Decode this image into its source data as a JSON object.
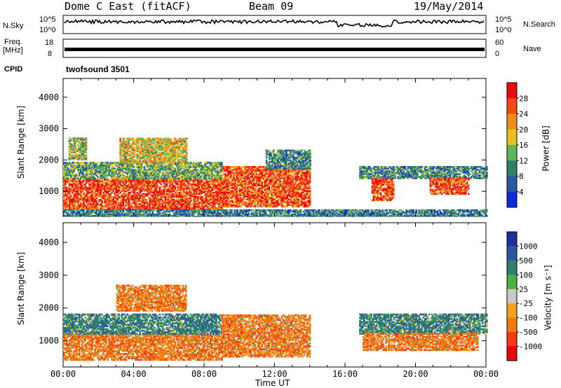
{
  "header": {
    "station": "Dome C East (fitACF)",
    "beam": "Beam 09",
    "date": "19/May/2014"
  },
  "top_panels": {
    "nsky_label": "N.Sky",
    "nsky_ticks": [
      "10^5",
      "10^0"
    ],
    "nsearch_label": "N.Search",
    "nsearch_ticks": [
      "10^5",
      "10^0"
    ],
    "freq_label": "Freq.",
    "freq_unit": "[MHz]",
    "freq_ticks": [
      "18",
      "8"
    ],
    "nave_label": "Nave",
    "nave_ticks": [
      "60",
      "0"
    ],
    "cpid_label": "CPID",
    "cpid_value": "twofsound 3501"
  },
  "chart_data": [
    {
      "type": "heatmap",
      "ylabel": "Slant Range [km]",
      "ylim": [
        200,
        4600
      ],
      "yticks": [
        1000,
        2000,
        3000,
        4000
      ],
      "xlabel": "Time UT",
      "xlim_hours": [
        0,
        24
      ],
      "xtick_labels": [
        "00:00",
        "04:00",
        "08:00",
        "12:00",
        "16:00",
        "20:00",
        "00:00"
      ],
      "colorbar": {
        "label": "Power [dB]",
        "ticks": [
          "4",
          "8",
          "12",
          "16",
          "20",
          "24",
          "28"
        ],
        "levels": [
          {
            "from": 0,
            "to": 4,
            "color": "#0a2bd8"
          },
          {
            "from": 4,
            "to": 8,
            "color": "#2a58a8"
          },
          {
            "from": 8,
            "to": 12,
            "color": "#2f7f6e"
          },
          {
            "from": 12,
            "to": 16,
            "color": "#5db65a"
          },
          {
            "from": 16,
            "to": 20,
            "color": "#e8c01c"
          },
          {
            "from": 20,
            "to": 24,
            "color": "#f08c1c"
          },
          {
            "from": 24,
            "to": 28,
            "color": "#f24a10"
          },
          {
            "from": 28,
            "to": 32,
            "color": "#ea0c0c"
          }
        ]
      },
      "regions": [
        {
          "t0": 0.0,
          "t1": 9.0,
          "r0": 400,
          "r1": 1400,
          "value": 27
        },
        {
          "t0": 0.0,
          "t1": 9.0,
          "r0": 1400,
          "r1": 1900,
          "value": 13
        },
        {
          "t0": 3.2,
          "t1": 7.0,
          "r0": 1900,
          "r1": 2700,
          "value": 18
        },
        {
          "t0": 0.3,
          "t1": 1.3,
          "r0": 2000,
          "r1": 2700,
          "value": 16
        },
        {
          "t0": 9.0,
          "t1": 14.0,
          "r0": 500,
          "r1": 1800,
          "value": 26
        },
        {
          "t0": 11.5,
          "t1": 14.0,
          "r0": 1700,
          "r1": 2300,
          "value": 10
        },
        {
          "t0": 16.8,
          "t1": 24.0,
          "r0": 1400,
          "r1": 1800,
          "value": 10
        },
        {
          "t0": 17.5,
          "t1": 18.7,
          "r0": 700,
          "r1": 1400,
          "value": 27
        },
        {
          "t0": 20.8,
          "t1": 23.0,
          "r0": 900,
          "r1": 1400,
          "value": 26
        },
        {
          "t0": 0.0,
          "t1": 24.0,
          "r0": 200,
          "r1": 400,
          "value": 9
        }
      ]
    },
    {
      "type": "heatmap",
      "ylabel": "Slant Range [km]",
      "ylim": [
        200,
        4600
      ],
      "yticks": [
        1000,
        2000,
        3000,
        4000
      ],
      "xlabel": "Time UT",
      "xlim_hours": [
        0,
        24
      ],
      "xtick_labels": [
        "00:00",
        "04:00",
        "08:00",
        "12:00",
        "16:00",
        "20:00",
        "00:00"
      ],
      "colorbar": {
        "label": "Velocity [m s⁻¹]",
        "ticks": [
          "1000",
          "500",
          "100",
          "25",
          "-25",
          "-100",
          "-500",
          "-1000"
        ],
        "levels": [
          {
            "from": 1000,
            "to": 1500,
            "color": "#1f2fa0"
          },
          {
            "from": 500,
            "to": 1000,
            "color": "#2c56a0"
          },
          {
            "from": 100,
            "to": 500,
            "color": "#2e7f72"
          },
          {
            "from": 25,
            "to": 100,
            "color": "#4db043"
          },
          {
            "from": -25,
            "to": 25,
            "color": "#c8c8c8"
          },
          {
            "from": -100,
            "to": -25,
            "color": "#f2a21c"
          },
          {
            "from": -500,
            "to": -100,
            "color": "#f27a10"
          },
          {
            "from": -1000,
            "to": -500,
            "color": "#f23c10"
          },
          {
            "from": -1500,
            "to": -1000,
            "color": "#e80a0a"
          }
        ]
      },
      "regions": [
        {
          "t0": 0.0,
          "t1": 9.0,
          "r0": 400,
          "r1": 1200,
          "value": -300
        },
        {
          "t0": 0.0,
          "t1": 9.0,
          "r0": 1200,
          "r1": 1800,
          "value": 300
        },
        {
          "t0": 3.0,
          "t1": 7.0,
          "r0": 1900,
          "r1": 2700,
          "value": -300
        },
        {
          "t0": 9.0,
          "t1": 14.0,
          "r0": 500,
          "r1": 1800,
          "value": -300
        },
        {
          "t0": 16.8,
          "t1": 24.0,
          "r0": 1200,
          "r1": 1800,
          "value": 300
        },
        {
          "t0": 17.0,
          "t1": 23.5,
          "r0": 700,
          "r1": 1200,
          "value": -300
        }
      ]
    }
  ],
  "colors": {
    "frame": "#000000",
    "trace": "#000000"
  }
}
